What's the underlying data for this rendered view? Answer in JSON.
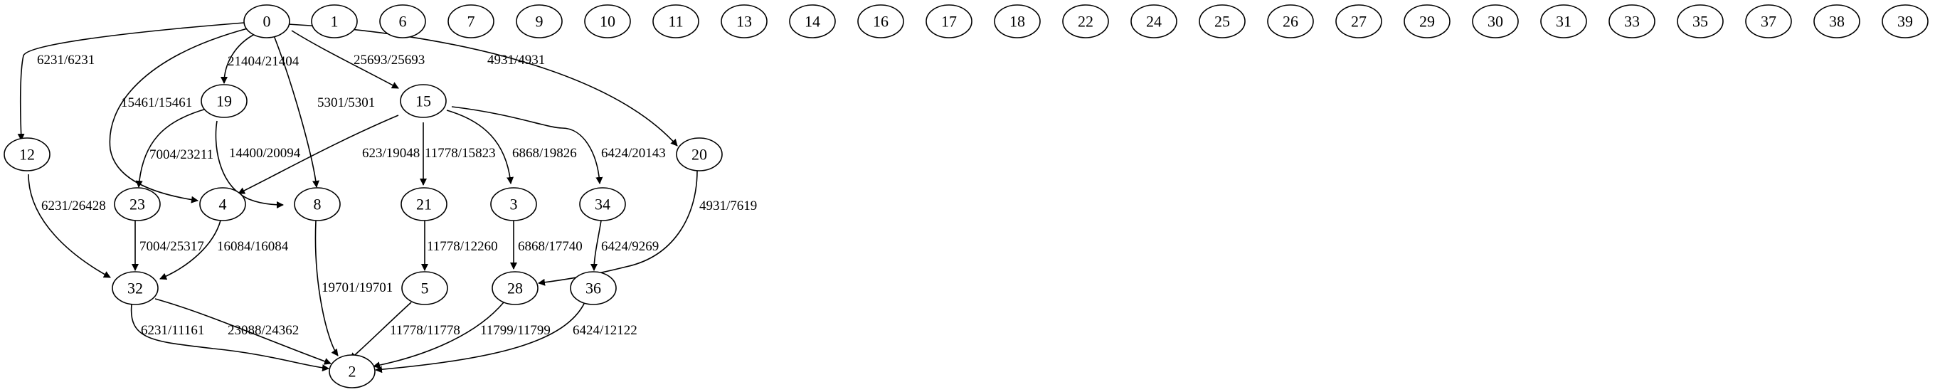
{
  "nodes": {
    "n0": "0",
    "n1": "1",
    "n6": "6",
    "n7": "7",
    "n9": "9",
    "n10": "10",
    "n11": "11",
    "n13": "13",
    "n14": "14",
    "n16": "16",
    "n17": "17",
    "n18": "18",
    "n22": "22",
    "n24": "24",
    "n25": "25",
    "n26": "26",
    "n27": "27",
    "n29": "29",
    "n30": "30",
    "n31": "31",
    "n33": "33",
    "n35": "35",
    "n37": "37",
    "n38": "38",
    "n39": "39",
    "n12": "12",
    "n19": "19",
    "n15": "15",
    "n20": "20",
    "n23": "23",
    "n4": "4",
    "n8": "8",
    "n21": "21",
    "n3": "3",
    "n34": "34",
    "n32": "32",
    "n5": "5",
    "n28": "28",
    "n36": "36",
    "n2": "2"
  },
  "edges": {
    "e0_12": "6231/6231",
    "e0_4": "15461/15461",
    "e0_19": "21404/21404",
    "e0_8": "5301/5301",
    "e0_15": "25693/25693",
    "e0_20": "4931/4931",
    "e19_23": "7004/23211",
    "e19_8": "14400/20094",
    "e15_4": "623/19048",
    "e15_21": "11778/15823",
    "e15_3": "6868/19826",
    "e15_34": "6424/20143",
    "e20_28": "4931/7619",
    "e12_32": "6231/26428",
    "e23_32": "7004/25317",
    "e4_32": "16084/16084",
    "e8_2": "19701/19701",
    "e21_5": "11778/12260",
    "e3_28": "6868/17740",
    "e34_36": "6424/9269",
    "e32_2a": "6231/11161",
    "e32_2b": "23088/24362",
    "e5_2": "11778/11778",
    "e28_2": "11799/11799",
    "e36_2": "6424/12122"
  }
}
